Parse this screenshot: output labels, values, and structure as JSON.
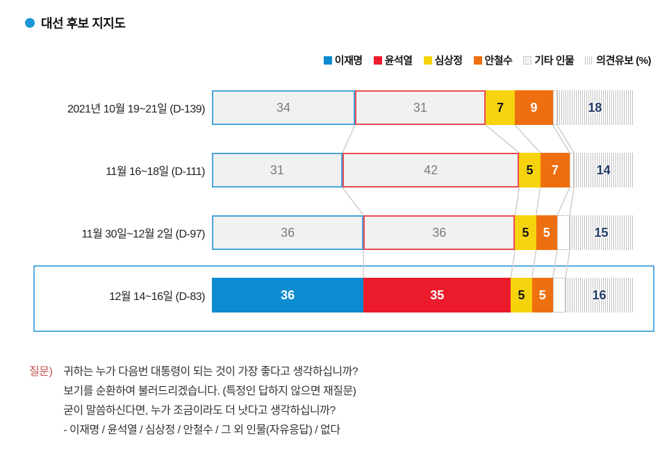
{
  "title": "대선 후보 지지도",
  "legend": [
    {
      "label": "이재명",
      "swatch": "solid",
      "color": "#0c8bd0"
    },
    {
      "label": "윤석열",
      "swatch": "solid",
      "color": "#ec1b2c"
    },
    {
      "label": "심상정",
      "swatch": "solid",
      "color": "#f6d30d"
    },
    {
      "label": "안철수",
      "swatch": "solid",
      "color": "#ee6f0f"
    },
    {
      "label": "기타 인물",
      "swatch": "light",
      "color": "#f1f1f1"
    },
    {
      "label": "의견유보 (%)",
      "swatch": "striped",
      "color": "#bfbfbf"
    }
  ],
  "chart_data": {
    "type": "bar",
    "stacked": true,
    "orientation": "horizontal",
    "unit": "%",
    "x_max": 100,
    "series_names": [
      "이재명",
      "윤석열",
      "심상정",
      "안철수",
      "기타 인물",
      "의견유보"
    ],
    "rows": [
      {
        "label": "2021년 10월 19~21일 (D-139)",
        "values": [
          34,
          31,
          7,
          9,
          null,
          18
        ],
        "highlighted": false
      },
      {
        "label": "11월 16~18일 (D-111)",
        "values": [
          31,
          42,
          5,
          7,
          null,
          14
        ],
        "highlighted": false
      },
      {
        "label": "11월 30일~12월 2일 (D-97)",
        "values": [
          36,
          36,
          5,
          5,
          null,
          15
        ],
        "highlighted": false
      },
      {
        "label": "12월 14~16일 (D-83)",
        "values": [
          36,
          35,
          5,
          5,
          null,
          16
        ],
        "highlighted": true
      }
    ]
  },
  "question": {
    "prefix": "질문)",
    "lines": [
      "귀하는 누가 다음번 대통령이 되는 것이 가장 좋다고 생각하십니까?",
      "보기를 순환하여 불러드리겠습니다. (특정인 답하지 않으면 재질문)",
      "굳이 말씀하신다면, 누가 조금이라도 더 낫다고 생각하십니까?",
      "- 이재명 / 윤석열 / 심상정 / 안철수 / 그 외 인물(자유응답) / 없다"
    ]
  },
  "colors": {
    "blue": "#0c8bd0",
    "blue_border": "#46a4da",
    "red": "#ec1b2c",
    "red_border": "#e94a55",
    "yellow": "#f6d30d",
    "orange": "#ee6f0f",
    "bar_fill": "#f1f1f1",
    "value_gray": "#7b7b7b",
    "stripe": "#bfbfbf",
    "stripe_value": "#203a64",
    "connector": "#cdcdcd",
    "highlight_border": "#56ade0",
    "title_bullet": "#1d96d8",
    "question_label": "#c0504d"
  }
}
